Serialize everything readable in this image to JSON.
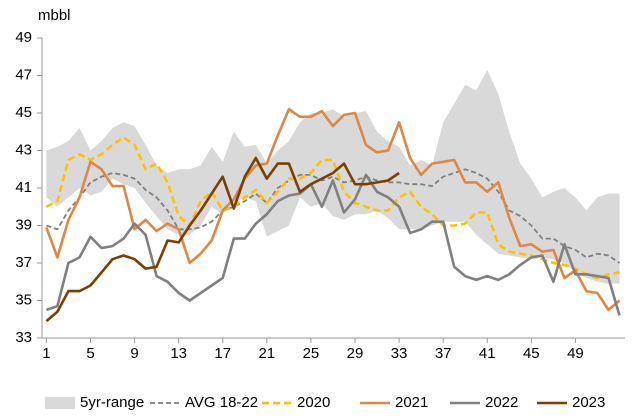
{
  "chart_data": {
    "type": "line",
    "ylabel": "mbbl",
    "x": [
      1,
      2,
      3,
      4,
      5,
      6,
      7,
      8,
      9,
      10,
      11,
      12,
      13,
      14,
      15,
      16,
      17,
      18,
      19,
      20,
      21,
      22,
      23,
      24,
      25,
      26,
      27,
      28,
      29,
      30,
      31,
      32,
      33,
      34,
      35,
      36,
      37,
      38,
      39,
      40,
      41,
      42,
      43,
      44,
      45,
      46,
      47,
      48,
      49,
      50,
      51,
      52,
      53
    ],
    "xlim": [
      0.6,
      53.5
    ],
    "xticks": [
      1,
      5,
      9,
      13,
      17,
      21,
      25,
      29,
      33,
      37,
      41,
      45,
      49
    ],
    "ylim": [
      33,
      49
    ],
    "yticks": [
      33,
      35,
      37,
      39,
      41,
      43,
      45,
      47,
      49
    ],
    "series": [
      {
        "name": "5yr-range",
        "color": "#d9d9d9",
        "style": "band",
        "high": [
          43,
          43.2,
          43.5,
          44.2,
          43,
          43.5,
          44.2,
          44.5,
          44.3,
          43.3,
          42.2,
          41.8,
          42,
          42,
          42.2,
          43.2,
          42.4,
          44,
          43.2,
          43.3,
          42.3,
          43,
          43.5,
          44.5,
          45,
          45,
          45.2,
          44.8,
          45,
          45.1,
          44,
          43.5,
          43.2,
          42.2,
          42.5,
          42.2,
          44.5,
          45.5,
          46.5,
          46.2,
          47.3,
          46,
          44,
          42.3,
          41.5,
          40.5,
          40.8,
          41,
          40.5,
          39.8,
          40.5,
          40.7,
          40.7
        ],
        "low": [
          40.5,
          40,
          40.5,
          41,
          40.6,
          40.8,
          41.5,
          41.2,
          41,
          40.2,
          39.5,
          38.8,
          38.5,
          38.5,
          39,
          40,
          39.6,
          40.2,
          40.5,
          40.3,
          38.4,
          38.7,
          39,
          40.5,
          40,
          40.2,
          39.5,
          39.3,
          39.6,
          39.6,
          39.8,
          39.4,
          38.8,
          38.8,
          38.8,
          39,
          39.2,
          39.2,
          39.2,
          38.5,
          38,
          37.5,
          37.4,
          37.3,
          37.2,
          37.3,
          37.2,
          37,
          36.5,
          36.2,
          36,
          35.9,
          35.9
        ]
      },
      {
        "name": "AVG 18-22",
        "color": "#7f7f7f",
        "style": "dash-thin",
        "values": [
          39,
          38.8,
          39.8,
          40.5,
          41.3,
          41.6,
          41.8,
          41.7,
          41.5,
          40.9,
          40.5,
          39.8,
          38.8,
          38.8,
          38.9,
          39.2,
          39.8,
          40,
          40.3,
          40.7,
          40.2,
          41,
          41.4,
          41.7,
          41.7,
          41.4,
          41.6,
          41.3,
          41.4,
          41.6,
          41.4,
          41.3,
          41.3,
          41.2,
          41.2,
          41.1,
          41.6,
          41.8,
          42,
          41.8,
          41.5,
          40.8,
          39.8,
          39.5,
          39,
          38.3,
          38.3,
          37.9,
          37.7,
          37.3,
          37.5,
          37.4,
          37
        ]
      },
      {
        "name": "2020",
        "color": "#ffc000",
        "style": "dash",
        "values": [
          40,
          40.3,
          42.5,
          42.8,
          42.5,
          42.8,
          43.3,
          43.7,
          43.3,
          42,
          42.3,
          41.3,
          39.5,
          39,
          40.3,
          40.8,
          39.8,
          40,
          40.5,
          40.9,
          40.2,
          40.8,
          41.5,
          41.5,
          41.8,
          42.5,
          42.5,
          40.8,
          40.2,
          40,
          39.8,
          39.8,
          40.5,
          40.8,
          40,
          39.6,
          39,
          39,
          39.1,
          39.7,
          39.7,
          38,
          37.6,
          37.5,
          37.4,
          37.2,
          37,
          36.9,
          36.7,
          36.4,
          36.2,
          36.4,
          36.5
        ]
      },
      {
        "name": "2021",
        "color": "#df8744",
        "style": "solid",
        "values": [
          38.9,
          37.3,
          39.3,
          40.5,
          42.4,
          42,
          41.1,
          41.1,
          38.8,
          39.3,
          38.7,
          39.1,
          38.8,
          37,
          37.5,
          38.2,
          39.8,
          40.4,
          41.5,
          42.2,
          42.3,
          43.8,
          45.2,
          44.8,
          44.8,
          45.1,
          44.3,
          44.9,
          45,
          43.3,
          42.9,
          43,
          44.5,
          42.6,
          41.7,
          42.3,
          42.4,
          42.5,
          41.3,
          41.3,
          40.8,
          41.3,
          39.4,
          37.9,
          38,
          37.6,
          37.7,
          36.2,
          36.6,
          35.5,
          35.4,
          34.5,
          35
        ]
      },
      {
        "name": "2022",
        "color": "#808080",
        "style": "solid",
        "values": [
          34.5,
          34.7,
          37,
          37.3,
          38.4,
          37.8,
          37.9,
          38.3,
          39.1,
          38.5,
          36.3,
          36,
          35.4,
          35,
          35.4,
          35.8,
          36.2,
          38.3,
          38.3,
          39.1,
          39.6,
          40.3,
          40.6,
          40.7,
          41.2,
          40,
          41.4,
          39.7,
          40.4,
          41.7,
          40.8,
          40.5,
          40,
          38.6,
          38.8,
          39.2,
          39.2,
          36.8,
          36.3,
          36.1,
          36.3,
          36.1,
          36.4,
          36.9,
          37.3,
          37.4,
          36,
          38,
          36.4,
          36.4,
          36.3,
          36.2,
          34.2
        ]
      },
      {
        "name": "2023",
        "color": "#7b3f00",
        "style": "solid",
        "values": [
          33.9,
          34.4,
          35.5,
          35.5,
          35.8,
          36.5,
          37.2,
          37.4,
          37.2,
          36.7,
          36.8,
          38.2,
          38.1,
          39,
          39.8,
          40.7,
          41.6,
          39.9,
          41.6,
          42.6,
          41.5,
          42.3,
          42.3,
          40.8,
          41.2,
          41.5,
          41.8,
          42.3,
          41.2,
          41.2,
          41.3,
          41.4,
          41.8,
          null,
          null,
          null,
          null,
          null,
          null,
          null,
          null,
          null,
          null,
          null,
          null,
          null,
          null,
          null,
          null,
          null,
          null,
          null,
          null
        ]
      }
    ]
  }
}
